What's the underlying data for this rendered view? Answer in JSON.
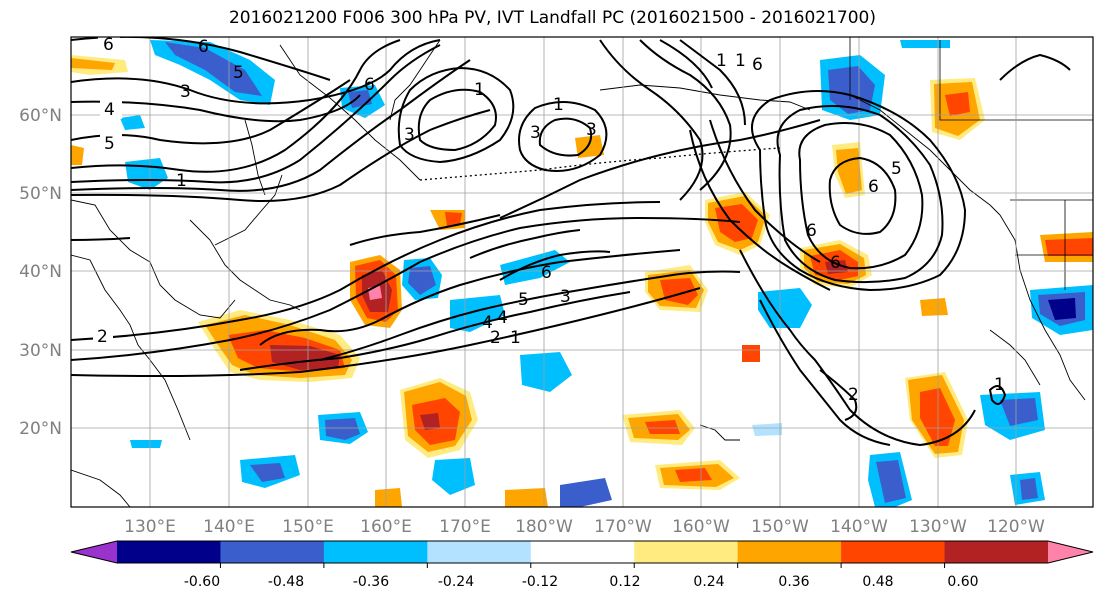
{
  "title": "2016021200 F006 300 hPa PV, IVT Landfall PC (2016021500 - 2016021700)",
  "lat_labels": [
    "60°N",
    "50°N",
    "40°N",
    "30°N",
    "20°N"
  ],
  "lon_labels": [
    "130°E",
    "140°E",
    "150°E",
    "160°E",
    "170°E",
    "180°W",
    "170°W",
    "160°W",
    "150°W",
    "140°W",
    "130°W",
    "120°W"
  ],
  "colorbar": {
    "colors": [
      "#9a32cd",
      "#00008b",
      "#3a5fcd",
      "#00bfff",
      "#b2e2ff",
      "#ffffff",
      "#ffeb80",
      "#ffa500",
      "#ff4500",
      "#b22222",
      "#ff82ab"
    ],
    "tick_labels": [
      "-0.60",
      "-0.48",
      "-0.36",
      "-0.24",
      "-0.12",
      "0.12",
      "0.24",
      "0.36",
      "0.48",
      "0.60"
    ]
  },
  "contour_labels": [
    "6",
    "6",
    "5",
    "3",
    "4",
    "5",
    "1",
    "6",
    "3",
    "3",
    "1",
    "1",
    "3",
    "1",
    "1",
    "6",
    "5",
    "6",
    "6",
    "6",
    "4",
    "6",
    "5",
    "3",
    "4",
    "2",
    "1",
    "2",
    "2",
    "1"
  ]
}
